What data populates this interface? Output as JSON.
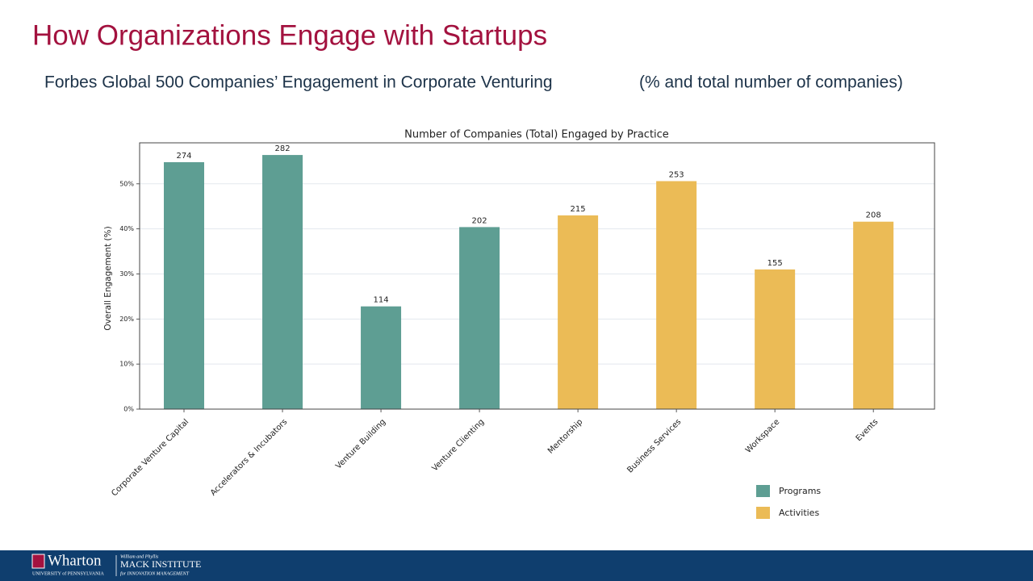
{
  "slide": {
    "title": "How Organizations Engage with Startups",
    "subtitle": "Forbes Global 500 Companies’ Engagement in Corporate Venturing",
    "subtitle_note": "(% and total number of companies)"
  },
  "chart_data": {
    "type": "bar",
    "title": "Number of Companies (Total) Engaged by Practice",
    "y_label": "Overall Engagement (%)",
    "categories": [
      "Corporate Venture Capital",
      "Accelerators & Incubators",
      "Venture Building",
      "Venture Clienting",
      "Mentorship",
      "Business Services",
      "Workspace",
      "Events"
    ],
    "series": [
      {
        "name": "Programs",
        "color": "#5e9e93",
        "values": [
          54.8,
          56.4,
          22.8,
          40.4,
          null,
          null,
          null,
          null
        ],
        "counts": [
          274,
          282,
          114,
          202,
          null,
          null,
          null,
          null
        ]
      },
      {
        "name": "Activities",
        "color": "#ebbb56",
        "values": [
          null,
          null,
          null,
          null,
          43,
          50.6,
          31,
          41.6
        ],
        "counts": [
          null,
          null,
          null,
          null,
          215,
          253,
          155,
          208
        ]
      }
    ],
    "ylim": [
      0,
      59.1
    ],
    "yticks": [
      {
        "value": 0,
        "label": "0%"
      },
      {
        "value": 10,
        "label": "10%"
      },
      {
        "value": 20,
        "label": "20%"
      },
      {
        "value": 30,
        "label": "30%"
      },
      {
        "value": 40,
        "label": "40%"
      },
      {
        "value": 50,
        "label": "50%"
      }
    ],
    "grid": true
  },
  "footer": {
    "brand": "Wharton",
    "university": "UNIVERSITY of PENNSYLVANIA",
    "donors": "William and Phyllis",
    "institute": "MACK INSTITUTE",
    "institute_sub": "for INNOVATION MANAGEMENT"
  }
}
